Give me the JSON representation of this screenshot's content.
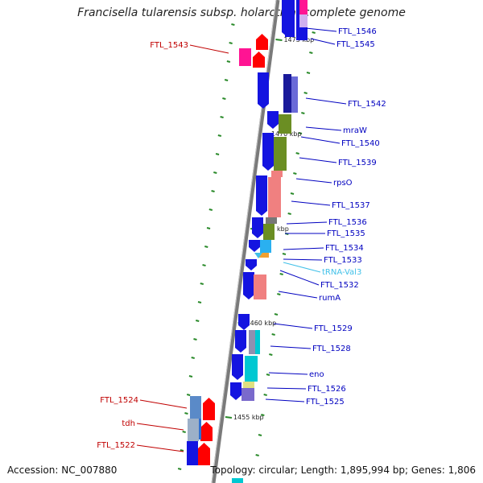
{
  "title": "Francisella tularensis subsp. holarctica, complete genome",
  "footer": {
    "accession": "Accession: NC_007880",
    "topology": "Topology: circular; Length: 1,895,994 bp; Genes: 1,806"
  },
  "colors": {
    "cds": "#1414e0",
    "cds_light": "#2f6fd0",
    "red_gene": "#ff0000",
    "magenta": "#ff1493",
    "olive": "#6b8e23",
    "salmon": "#f08080",
    "cyan": "#00c8d2",
    "trna": "#40c0e8",
    "label_blue": "#0000c0",
    "label_red": "#c00000",
    "tick": "#2a8a2a",
    "backbone": "#808080"
  },
  "ticks": [
    {
      "label": "1475 kbp"
    },
    {
      "label": "1470 kbp"
    },
    {
      "label": "1465 kbp"
    },
    {
      "label": "1460 kbp"
    },
    {
      "label": "1455 kbp"
    }
  ],
  "genes": [
    {
      "name": "FTL_1546",
      "color": "label_blue"
    },
    {
      "name": "FTL_1545",
      "color": "label_blue"
    },
    {
      "name": "FTL_1543",
      "color": "label_red"
    },
    {
      "name": "FTL_1542",
      "color": "label_blue"
    },
    {
      "name": "mraW",
      "color": "label_blue"
    },
    {
      "name": "FTL_1540",
      "color": "label_blue"
    },
    {
      "name": "FTL_1539",
      "color": "label_blue"
    },
    {
      "name": "rpsO",
      "color": "label_blue"
    },
    {
      "name": "FTL_1537",
      "color": "label_blue"
    },
    {
      "name": "FTL_1536",
      "color": "label_blue"
    },
    {
      "name": "FTL_1535",
      "color": "label_blue"
    },
    {
      "name": "FTL_1534",
      "color": "label_blue"
    },
    {
      "name": "FTL_1533",
      "color": "label_blue"
    },
    {
      "name": "tRNA-Val3",
      "color": "trna"
    },
    {
      "name": "FTL_1532",
      "color": "label_blue"
    },
    {
      "name": "rumA",
      "color": "label_blue"
    },
    {
      "name": "FTL_1529",
      "color": "label_blue"
    },
    {
      "name": "FTL_1528",
      "color": "label_blue"
    },
    {
      "name": "eno",
      "color": "label_blue"
    },
    {
      "name": "FTL_1526",
      "color": "label_blue"
    },
    {
      "name": "FTL_1525",
      "color": "label_blue"
    },
    {
      "name": "FTL_1524",
      "color": "label_red"
    },
    {
      "name": "tdh",
      "color": "label_red"
    },
    {
      "name": "FTL_1522",
      "color": "label_red"
    }
  ]
}
